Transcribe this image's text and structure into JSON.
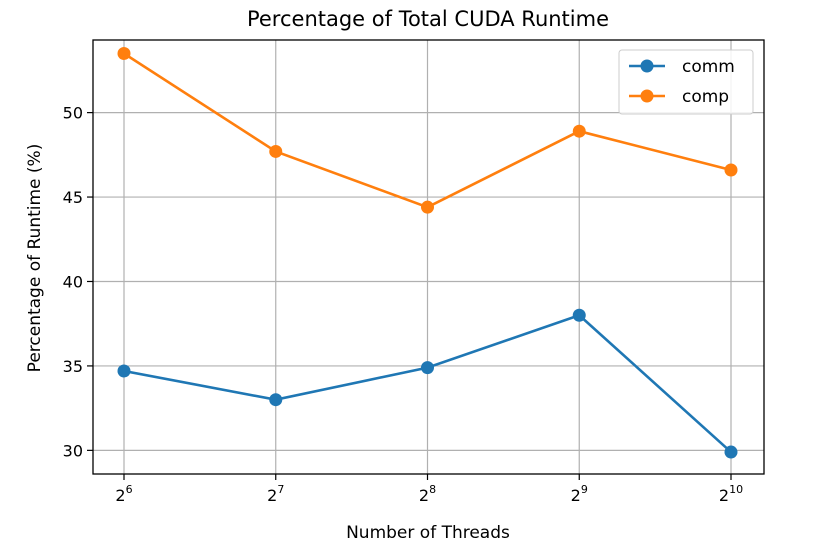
{
  "chart_data": {
    "type": "line",
    "title": "Percentage of Total CUDA Runtime",
    "xlabel": "Number of Threads",
    "ylabel": "Percentage of Runtime (%)",
    "x": [
      6,
      7,
      8,
      9,
      10
    ],
    "xticks": [
      {
        "base": "2",
        "exp": "6"
      },
      {
        "base": "2",
        "exp": "7"
      },
      {
        "base": "2",
        "exp": "8"
      },
      {
        "base": "2",
        "exp": "9"
      },
      {
        "base": "2",
        "exp": "10"
      }
    ],
    "x_scale": "log2",
    "yticks": [
      30,
      35,
      40,
      45,
      50
    ],
    "ylim": [
      28.6,
      54.3
    ],
    "grid": true,
    "legend_position": "top-right",
    "series": [
      {
        "name": "comm",
        "color": "#1f77b4",
        "values": [
          34.7,
          33.0,
          34.9,
          38.0,
          29.9
        ]
      },
      {
        "name": "comp",
        "color": "#ff7f0e",
        "values": [
          53.5,
          47.7,
          44.4,
          48.9,
          46.6
        ]
      }
    ]
  }
}
